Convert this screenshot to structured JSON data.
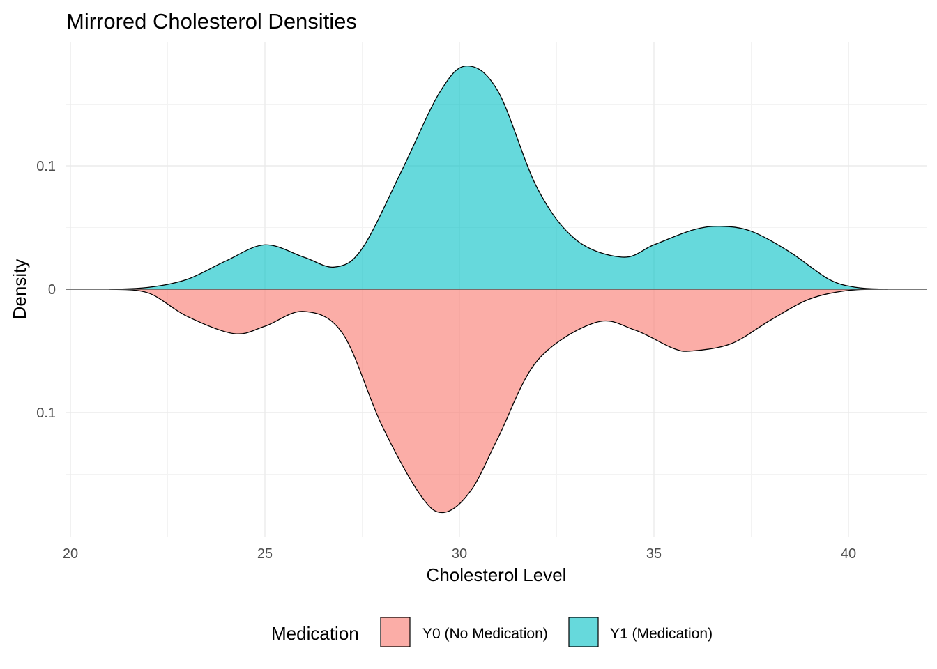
{
  "chart_data": {
    "type": "area",
    "title": "Mirrored Cholesterol Densities",
    "xlabel": "Cholesterol Level",
    "ylabel": "Density",
    "xlim": [
      20,
      42
    ],
    "ylim": [
      -0.198,
      0.198
    ],
    "x_ticks": [
      20,
      25,
      30,
      35,
      40
    ],
    "x_tick_labels": [
      "20",
      "25",
      "30",
      "35",
      "40"
    ],
    "y_ticks": [
      0.1,
      0,
      -0.1
    ],
    "y_tick_labels": [
      "0.1",
      "0",
      "0.1"
    ],
    "grid": true,
    "baseline": 0,
    "legend": {
      "title": "Medication",
      "position": "bottom",
      "entries": [
        {
          "label": "Y0 (No Medication)",
          "color": "#f8766d"
        },
        {
          "label": "Y1 (Medication)",
          "color": "#00bfc4"
        }
      ]
    },
    "series": [
      {
        "name": "Y1 (Medication)",
        "color": "#00bfc4",
        "direction": "up",
        "x": [
          21.0,
          22.0,
          23.0,
          24.0,
          25.0,
          26.0,
          26.8,
          27.5,
          28.5,
          29.5,
          30.2,
          31.0,
          32.0,
          33.0,
          34.2,
          35.0,
          36.0,
          36.7,
          37.5,
          38.5,
          39.5,
          40.2,
          41.0
        ],
        "values": [
          0.0,
          0.0015,
          0.008,
          0.023,
          0.036,
          0.026,
          0.018,
          0.033,
          0.095,
          0.16,
          0.181,
          0.16,
          0.082,
          0.04,
          0.026,
          0.036,
          0.048,
          0.051,
          0.047,
          0.03,
          0.008,
          0.0015,
          0.0
        ]
      },
      {
        "name": "Y0 (No Medication)",
        "color": "#f8766d",
        "direction": "down",
        "x": [
          21.0,
          22.0,
          23.0,
          24.2,
          25.0,
          26.0,
          27.0,
          28.0,
          29.0,
          29.6,
          30.3,
          31.0,
          32.0,
          33.5,
          34.5,
          35.5,
          36.0,
          37.0,
          38.0,
          39.0,
          40.0,
          41.0
        ],
        "values": [
          0.0,
          0.003,
          0.022,
          0.036,
          0.03,
          0.018,
          0.036,
          0.11,
          0.167,
          0.181,
          0.163,
          0.12,
          0.058,
          0.027,
          0.033,
          0.048,
          0.05,
          0.044,
          0.025,
          0.008,
          0.001,
          0.0
        ]
      }
    ]
  }
}
